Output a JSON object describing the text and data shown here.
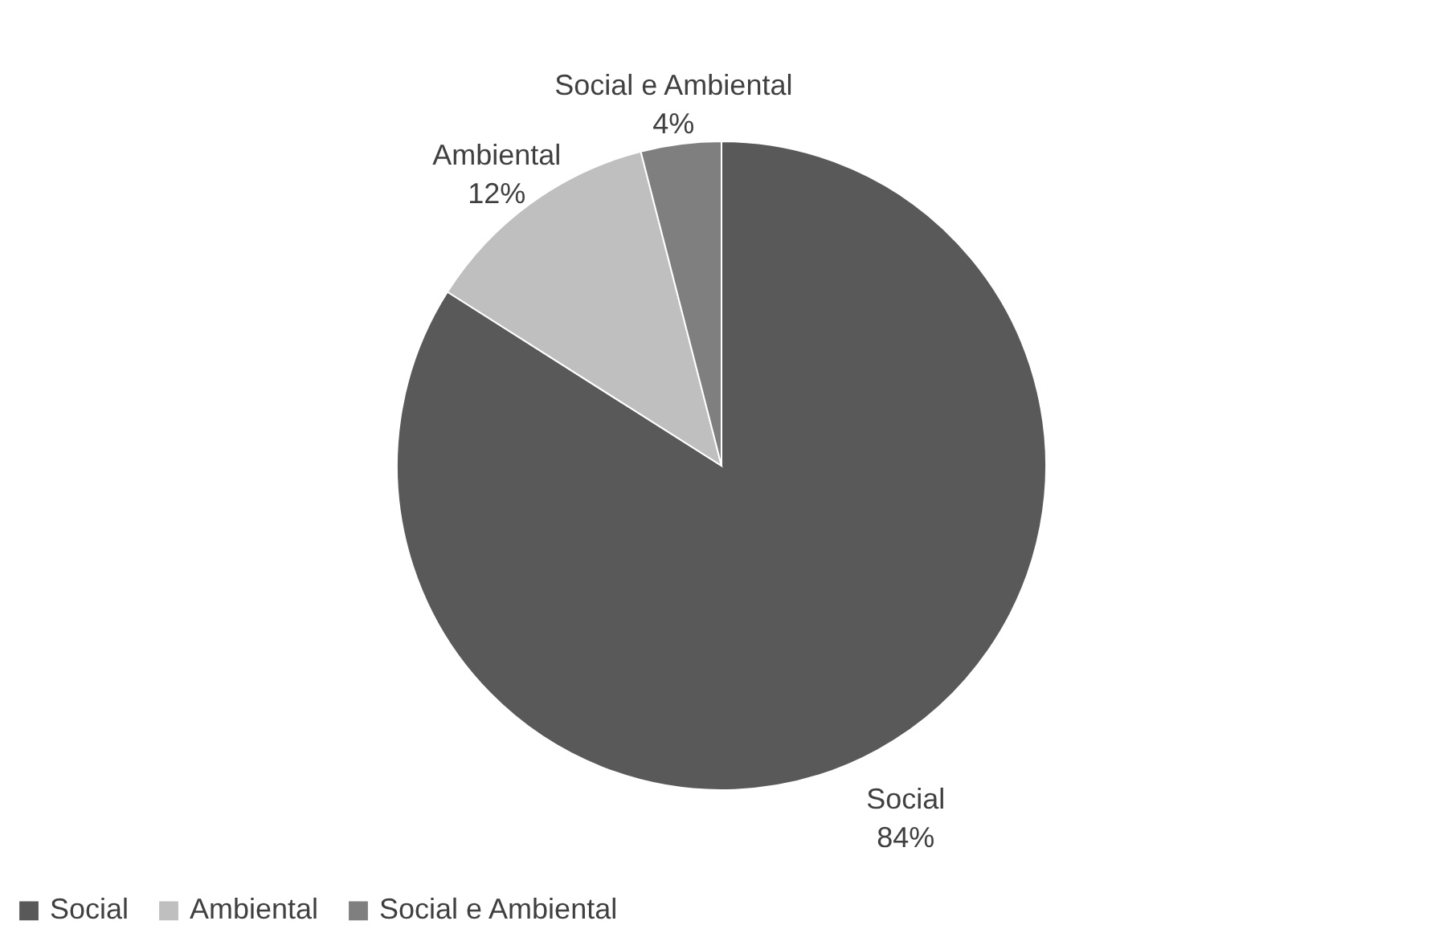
{
  "chart_data": {
    "type": "pie",
    "categories": [
      "Social",
      "Ambiental",
      "Social e Ambiental"
    ],
    "values": [
      84,
      12,
      4
    ],
    "colors": [
      "#595959",
      "#bfbfbf",
      "#7f7f7f"
    ],
    "value_labels": [
      "84%",
      "12%",
      "4%"
    ],
    "legend": "bottom"
  }
}
